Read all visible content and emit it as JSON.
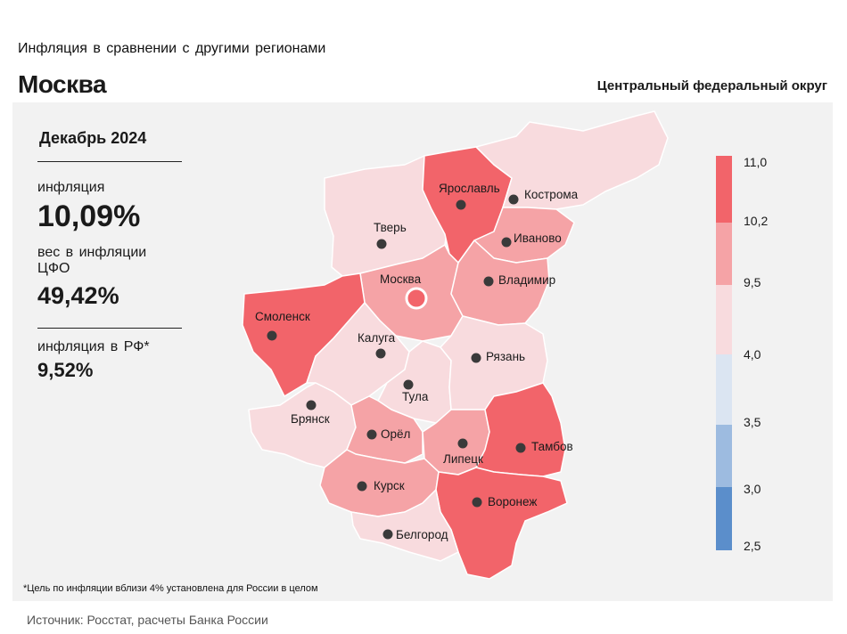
{
  "header": {
    "subtitle": "Инфляция  в сравнении  с другими  регионами",
    "region": "Москва",
    "district": "Центральный федеральный округ"
  },
  "stats": {
    "period": "Декабрь 2024",
    "inflation_label": "инфляция",
    "inflation_value": "10,09%",
    "weight_label": "вес в инфляции  ЦФО",
    "weight_value": "49,42%",
    "rf_label": "инфляция  в РФ*",
    "rf_value": "9,52%"
  },
  "footnote": "*Цель по инфляции вблизи 4% установлена для России в целом",
  "source": "Источник: Росстат, расчеты Банка России",
  "colors": {
    "very_high": "#f2646a",
    "high": "#f5a3a6",
    "mid": "#f8dbde",
    "low1": "#dbe5f2",
    "low2": "#9dbbe0",
    "low3": "#5b8ecb",
    "highlight": "#f2646a"
  },
  "legend": {
    "ticks": [
      "11,0",
      "10,2",
      "9,5",
      "4,0",
      "3,5",
      "3,0",
      "2,5"
    ]
  },
  "regions": [
    {
      "name": "Ярославль",
      "bin": "very_high"
    },
    {
      "name": "Кострома",
      "bin": "mid"
    },
    {
      "name": "Тверь",
      "bin": "mid"
    },
    {
      "name": "Иваново",
      "bin": "high"
    },
    {
      "name": "Москва",
      "bin": "high"
    },
    {
      "name": "Владимир",
      "bin": "high"
    },
    {
      "name": "Смоленск",
      "bin": "very_high"
    },
    {
      "name": "Калуга",
      "bin": "mid"
    },
    {
      "name": "Рязань",
      "bin": "mid"
    },
    {
      "name": "Тула",
      "bin": "mid"
    },
    {
      "name": "Брянск",
      "bin": "mid"
    },
    {
      "name": "Орёл",
      "bin": "high"
    },
    {
      "name": "Липецк",
      "bin": "high"
    },
    {
      "name": "Тамбов",
      "bin": "very_high"
    },
    {
      "name": "Курск",
      "bin": "high"
    },
    {
      "name": "Воронеж",
      "bin": "very_high"
    },
    {
      "name": "Белгород",
      "bin": "mid"
    }
  ]
}
